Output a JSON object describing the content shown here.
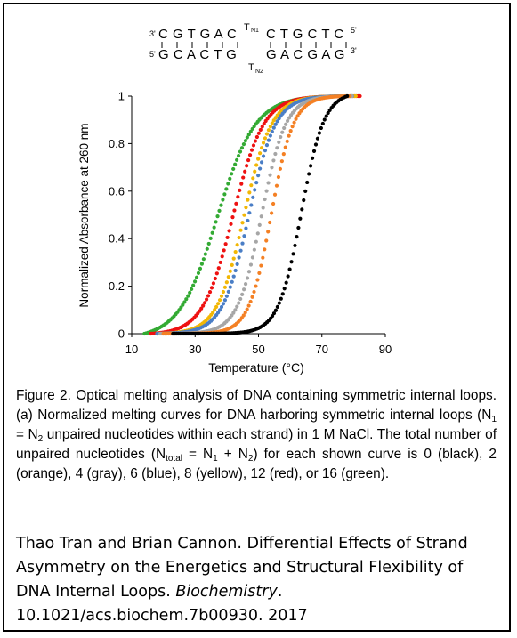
{
  "colors": {
    "black": "#000000",
    "orange": "#f48024",
    "gray": "#a6a6a6",
    "blue": "#4a7ec6",
    "yellow": "#f2b705",
    "red": "#ee1111",
    "green": "#33aa33"
  },
  "sequence": {
    "top_five": "3'",
    "top_left": "C G T G A C",
    "top_loop": "T",
    "top_loop_sub": "N1",
    "top_right": "C T G C T C",
    "top_three": "5'",
    "bottom_five": "5'",
    "bottom_left": "G C A C T G",
    "bottom_loop": "T",
    "bottom_loop_sub": "N2",
    "bottom_right": "G A C G A G",
    "bottom_three": "3'"
  },
  "chart_data": {
    "type": "scatter",
    "title": "",
    "xlabel": "Temperature (°C)",
    "ylabel": "Normalized Absorbance at 260 nm",
    "xlim": [
      10,
      90
    ],
    "ylim": [
      0,
      1
    ],
    "xticks": [
      "10",
      "30",
      "50",
      "70",
      "90"
    ],
    "yticks": [
      "0",
      "0.2",
      "0.4",
      "0.6",
      "0.8",
      "1"
    ],
    "grid": false,
    "series": [
      {
        "color_name": "black",
        "color": "#000000",
        "tm": 63.5,
        "width": 3.6,
        "x_start": 23,
        "x_end": 78
      },
      {
        "color_name": "orange",
        "color": "#f48024",
        "tm": 54.0,
        "width": 3.5,
        "x_start": 20,
        "x_end": 79
      },
      {
        "color_name": "gray",
        "color": "#a6a6a6",
        "tm": 51.0,
        "width": 3.8,
        "x_start": 19,
        "x_end": 80
      },
      {
        "color_name": "blue",
        "color": "#4a7ec6",
        "tm": 47.0,
        "width": 4.2,
        "x_start": 18,
        "x_end": 80
      },
      {
        "color_name": "yellow",
        "color": "#f2b705",
        "tm": 45.5,
        "width": 4.3,
        "x_start": 18,
        "x_end": 81
      },
      {
        "color_name": "red",
        "color": "#ee1111",
        "tm": 42.0,
        "width": 4.8,
        "x_start": 16,
        "x_end": 82
      },
      {
        "color_name": "green",
        "color": "#33aa33",
        "tm": 37.0,
        "width": 6.0,
        "x_start": 14,
        "x_end": 78
      }
    ]
  },
  "caption": {
    "line1": "Figure 2. Optical melting analysis of DNA containing symmetric internal loops. (a) Normalized melting curves for DNA harboring symmetric internal loops (N",
    "sub_a": "1",
    "line2": " = N",
    "sub_b": "2",
    "line3": " unpaired nucleotides within each strand) in 1 M NaCl. The total number of unpaired nucleotides (N",
    "sub_c": "total",
    "line4": " = N",
    "sub_d": "1",
    "line5": " + N",
    "sub_e": "2",
    "line6": ") for each shown curve is 0 (black), 2 (orange), 4 (gray), 6 (blue), 8 (yellow), 12 (red), or 16 (green)."
  },
  "citation": {
    "authors_title": "Thao Tran and Brian Cannon. Differential Effects of Strand Asymmetry on the Energetics and Structural Flexibility of DNA Internal Loops. ",
    "journal": "Biochemistry",
    "tail": ". 10.1021/acs.biochem.7b00930. 2017"
  }
}
